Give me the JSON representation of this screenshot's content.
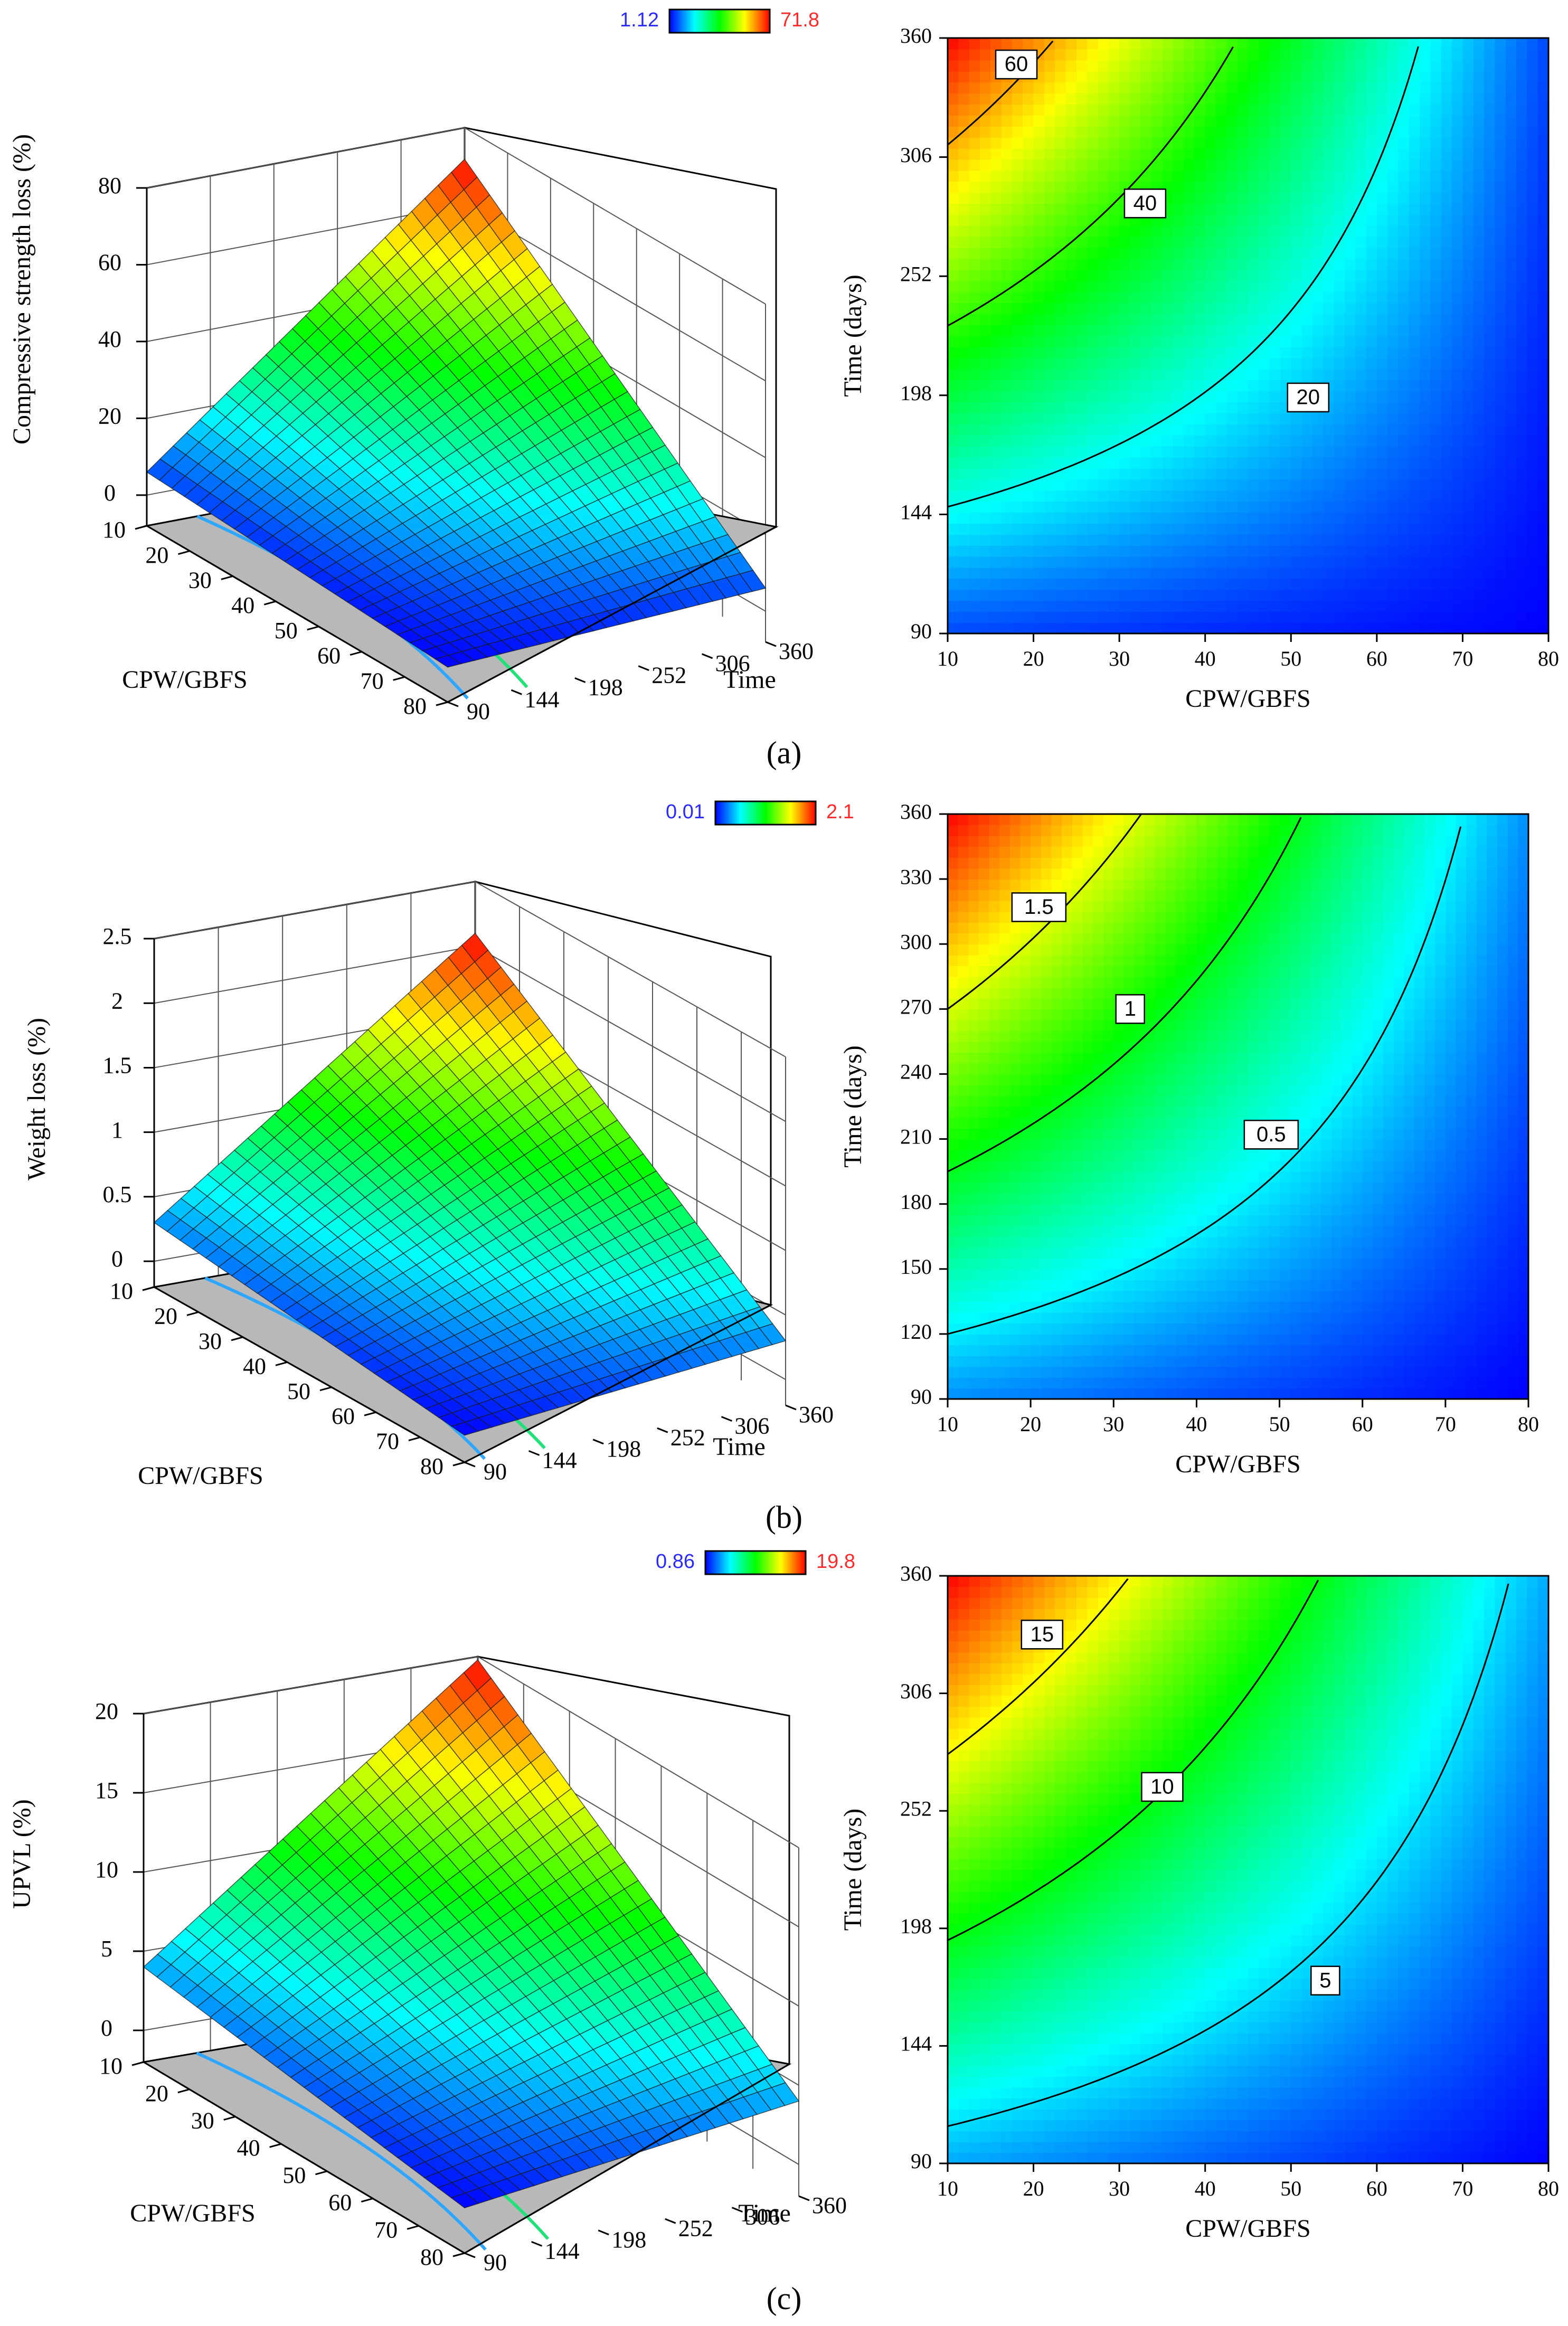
{
  "colors": {
    "ramp": [
      "#0000ff",
      "#00ffff",
      "#00ff00",
      "#ffff00",
      "#ff0000"
    ],
    "floor": "#b8b8b8",
    "axis": "#000000",
    "mesh": "#1a1a1a",
    "cb_min_text": "#2a2aff",
    "cb_max_text": "#ff2a2a"
  },
  "chart_data": [
    {
      "type": "surface",
      "panel_label": "(a)",
      "zlabel": "Compressive strength loss (%)",
      "xlabel": "CPW/GBFS",
      "ylabel": "Time",
      "x_ticks": [
        "10",
        "20",
        "30",
        "40",
        "50",
        "60",
        "70",
        "80"
      ],
      "y_ticks": [
        "90",
        "144",
        "198",
        "252",
        "306",
        "360"
      ],
      "z_ticks": [
        "0",
        "20",
        "40",
        "60",
        "80"
      ],
      "xlim": [
        10,
        80
      ],
      "ylim": [
        90,
        360
      ],
      "zlim": [
        -8,
        80
      ],
      "colorbar": {
        "min": "1.12",
        "max": "71.8"
      },
      "corners": {
        "x10_t90": 6,
        "x10_t360": 71.8,
        "x80_t90": 1.12,
        "x80_t360": 6
      }
    },
    {
      "type": "contour",
      "xlabel": "CPW/GBFS",
      "ylabel": "Time (days)",
      "x_ticks": [
        "10",
        "20",
        "30",
        "40",
        "50",
        "60",
        "70",
        "80"
      ],
      "y_ticks": [
        "90",
        "144",
        "198",
        "252",
        "306",
        "360"
      ],
      "xlim": [
        10,
        80
      ],
      "ylim": [
        90,
        360
      ],
      "vmin": 1.12,
      "vmax": 71.8,
      "contours": [
        {
          "label": "60",
          "value": 60,
          "label_x": 18,
          "label_y": 348
        },
        {
          "label": "40",
          "value": 40,
          "label_x": 33,
          "label_y": 285
        },
        {
          "label": "20",
          "value": 20,
          "label_x": 52,
          "label_y": 197
        }
      ]
    },
    {
      "type": "surface",
      "panel_label": "(b)",
      "zlabel": "Weight loss (%)",
      "xlabel": "CPW/GBFS",
      "ylabel": "Time",
      "x_ticks": [
        "10",
        "20",
        "30",
        "40",
        "50",
        "60",
        "70",
        "80"
      ],
      "y_ticks": [
        "90",
        "144",
        "198",
        "252",
        "306",
        "360"
      ],
      "z_ticks": [
        "0",
        "0.5",
        "1",
        "1.5",
        "2",
        "2.5"
      ],
      "xlim": [
        10,
        80
      ],
      "ylim": [
        90,
        360
      ],
      "zlim": [
        -0.2,
        2.5
      ],
      "colorbar": {
        "min": "0.01",
        "max": "2.1"
      },
      "corners": {
        "x10_t90": 0.3,
        "x10_t360": 2.1,
        "x80_t90": 0.01,
        "x80_t360": 0.3
      }
    },
    {
      "type": "contour",
      "xlabel": "CPW/GBFS",
      "ylabel": "Time (days)",
      "x_ticks": [
        "10",
        "20",
        "30",
        "40",
        "50",
        "60",
        "70",
        "80"
      ],
      "y_ticks": [
        "90",
        "120",
        "150",
        "180",
        "210",
        "240",
        "270",
        "300",
        "330",
        "360"
      ],
      "xlim": [
        10,
        80
      ],
      "ylim": [
        90,
        360
      ],
      "vmin": 0.01,
      "vmax": 2.1,
      "contours": [
        {
          "label": "1.5",
          "value": 1.5,
          "label_x": 21,
          "label_y": 317
        },
        {
          "label": "1",
          "value": 1.0,
          "label_x": 32,
          "label_y": 270
        },
        {
          "label": "0.5",
          "value": 0.5,
          "label_x": 49,
          "label_y": 212
        }
      ]
    },
    {
      "type": "surface",
      "panel_label": "(c)",
      "zlabel": "UPVL (%)",
      "xlabel": "CPW/GBFS",
      "ylabel": "Time",
      "x_ticks": [
        "10",
        "20",
        "30",
        "40",
        "50",
        "60",
        "70",
        "80"
      ],
      "y_ticks": [
        "90",
        "144",
        "198",
        "252",
        "306",
        "360"
      ],
      "z_ticks": [
        "0",
        "5",
        "10",
        "15",
        "20"
      ],
      "xlim": [
        10,
        80
      ],
      "ylim": [
        90,
        360
      ],
      "zlim": [
        -2,
        20
      ],
      "colorbar": {
        "min": "0.86",
        "max": "19.8"
      },
      "corners": {
        "x10_t90": 4,
        "x10_t360": 19.8,
        "x80_t90": 0.86,
        "x80_t360": 4
      }
    },
    {
      "type": "contour",
      "xlabel": "CPW/GBFS",
      "ylabel": "Time (days)",
      "x_ticks": [
        "10",
        "20",
        "30",
        "40",
        "50",
        "60",
        "70",
        "80"
      ],
      "y_ticks": [
        "90",
        "144",
        "198",
        "252",
        "306",
        "360"
      ],
      "xlim": [
        10,
        80
      ],
      "ylim": [
        90,
        360
      ],
      "vmin": 0.86,
      "vmax": 19.8,
      "contours": [
        {
          "label": "15",
          "value": 15,
          "label_x": 21,
          "label_y": 333
        },
        {
          "label": "10",
          "value": 10,
          "label_x": 35,
          "label_y": 263
        },
        {
          "label": "5",
          "value": 5,
          "label_x": 54,
          "label_y": 174
        }
      ]
    }
  ]
}
